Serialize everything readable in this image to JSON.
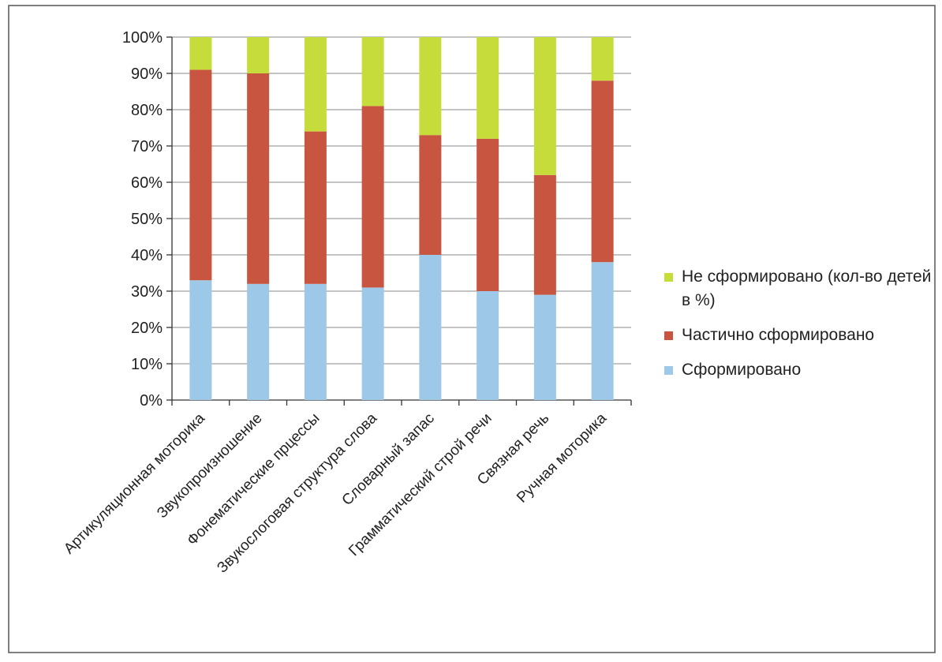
{
  "chart_data": {
    "type": "bar",
    "stacked": true,
    "categories": [
      "Артикуляционная моторика",
      "Звукопроизношение",
      "Фонематические прцессы",
      "Звукослоговая структура слова",
      "Словарный запас",
      "Грамматический строй речи",
      "Связная речь",
      "Ручная моторика"
    ],
    "series": [
      {
        "name": "Сформировано",
        "color": "#9ec8e8",
        "values": [
          33,
          32,
          32,
          31,
          40,
          30,
          29,
          38
        ]
      },
      {
        "name": "Частично сформировано",
        "color": "#c8553f",
        "values": [
          58,
          58,
          42,
          50,
          33,
          42,
          33,
          50
        ]
      },
      {
        "name": "Не сформировано (кол-во детей в %)",
        "color": "#c6dc3a",
        "values": [
          9,
          10,
          26,
          19,
          27,
          28,
          38,
          12
        ]
      }
    ],
    "ytick_labels": [
      "0%",
      "10%",
      "20%",
      "30%",
      "40%",
      "50%",
      "60%",
      "70%",
      "80%",
      "90%",
      "100%"
    ],
    "ylim": [
      0,
      100
    ],
    "grid": true,
    "legend": {
      "position": "right",
      "order": [
        "Не сформировано (кол-во детей в %)",
        "Частично сформировано",
        "Сформировано"
      ]
    }
  }
}
